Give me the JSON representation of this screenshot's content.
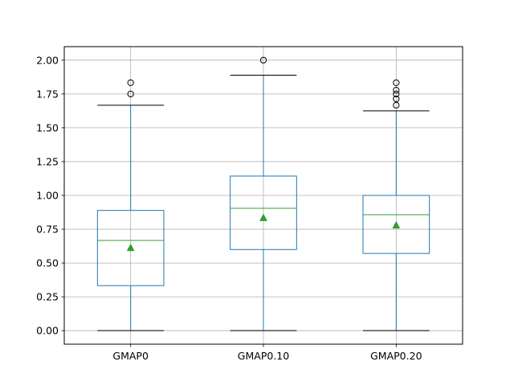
{
  "chart_data": {
    "type": "box",
    "title": "",
    "xlabel": "",
    "ylabel": "",
    "ylim": [
      -0.1,
      2.1
    ],
    "yticks": [
      "0.00",
      "0.25",
      "0.50",
      "0.75",
      "1.00",
      "1.25",
      "1.50",
      "1.75",
      "2.00"
    ],
    "grid": true,
    "categories": [
      "GMAP0",
      "GMAP0.10",
      "GMAP0.20"
    ],
    "boxes": [
      {
        "category": "GMAP0",
        "whisker_low": 0.0,
        "q1": 0.333,
        "median": 0.667,
        "q3": 0.889,
        "whisker_high": 1.667,
        "mean": 0.611,
        "outliers": [
          1.75,
          1.833
        ]
      },
      {
        "category": "GMAP0.10",
        "whisker_low": 0.0,
        "q1": 0.6,
        "median": 0.905,
        "q3": 1.143,
        "whisker_high": 1.889,
        "mean": 0.833,
        "outliers": [
          2.0
        ]
      },
      {
        "category": "GMAP0.20",
        "whisker_low": 0.0,
        "q1": 0.571,
        "median": 0.857,
        "q3": 1.0,
        "whisker_high": 1.625,
        "mean": 0.778,
        "outliers": [
          1.667,
          1.714,
          1.75,
          1.778,
          1.833
        ]
      }
    ],
    "colors": {
      "box": "#1f77b4",
      "median": "#2ca02c",
      "mean_marker": "#2ca02c",
      "whisker_cap": "#000000",
      "outlier": "#000000",
      "grid": "#b0b0b0"
    }
  }
}
